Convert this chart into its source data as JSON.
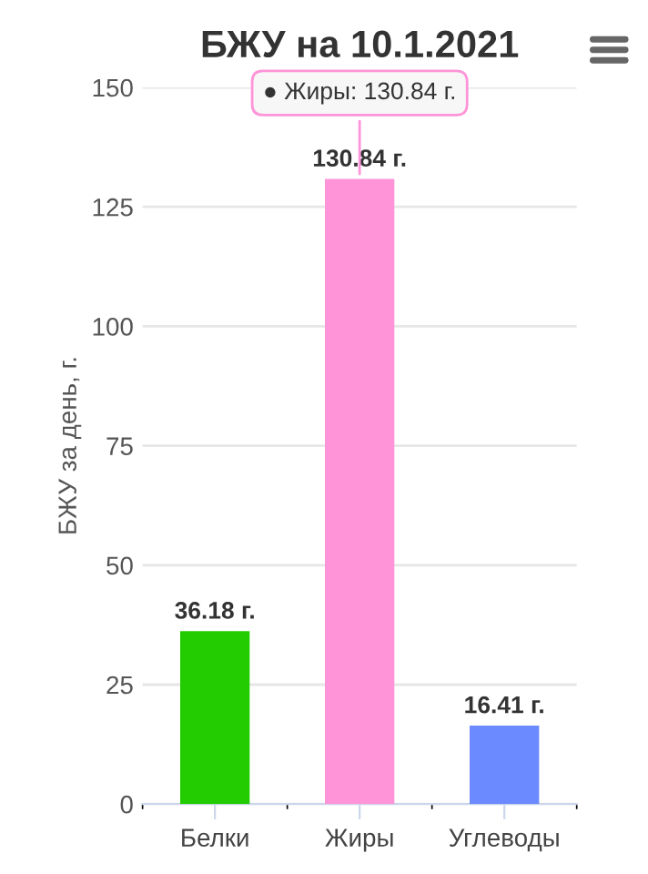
{
  "chart_data": {
    "type": "bar",
    "title": "БЖУ на 10.1.2021",
    "ylabel": "БЖУ за день, г.",
    "categories": [
      "Белки",
      "Жиры",
      "Углеводы"
    ],
    "values": [
      36.18,
      130.84,
      16.41
    ],
    "colors": [
      "#22cc00",
      "#ff94d8",
      "#6b8aff"
    ],
    "value_labels": [
      "36.18 г.",
      "130.84 г.",
      "16.41 г."
    ],
    "annotations": [
      {
        "text": "● Жиры: 130.84 г.",
        "x": "Жиры",
        "y": 130.84
      }
    ],
    "ylim": [
      0,
      150
    ],
    "yticks": [
      0,
      25,
      50,
      75,
      100,
      125,
      150
    ],
    "grid": "y",
    "legend": false
  }
}
